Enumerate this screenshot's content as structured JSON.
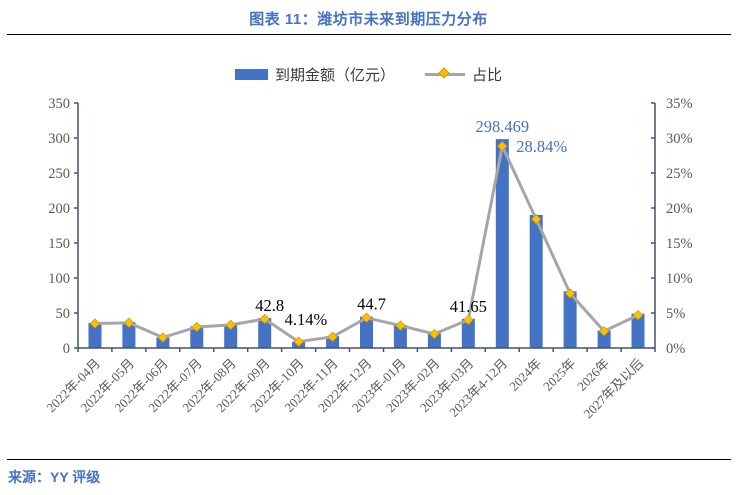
{
  "page": {
    "title": "图表 11：潍坊市未来到期压力分布",
    "source": "来源：YY 评级",
    "accent_color": "#4472C4"
  },
  "legend": {
    "bar": {
      "label": "到期金额（亿元）"
    },
    "line": {
      "label": "占比"
    }
  },
  "chart_data": {
    "type": "bar+line combo",
    "title": "图表 11：潍坊市未来到期压力分布",
    "grid": "off",
    "legend_position": "top-center",
    "categories": [
      "2022年-04月",
      "2022年-05月",
      "2022年-06月",
      "2022年-07月",
      "2022年-08月",
      "2022年-09月",
      "2022年-10月",
      "2022年-11月",
      "2022年-12月",
      "2023年-01月",
      "2023年-02月",
      "2023年-03月",
      "2023年4-12月",
      "2024年",
      "2025年",
      "2026年",
      "2027年及以后"
    ],
    "series": [
      {
        "name": "到期金额（亿元）",
        "type": "bar",
        "axis": "left",
        "color": "#4472C4",
        "values": [
          36,
          37,
          15,
          31,
          34,
          42.8,
          9,
          17,
          44.7,
          33,
          21,
          41.65,
          298.469,
          190,
          81,
          25,
          49
        ]
      },
      {
        "name": "占比",
        "type": "line",
        "axis": "right",
        "color": "#A6A6A6",
        "marker": "diamond",
        "marker_color": "#FFC000",
        "marker_edge_color": "#d09b00",
        "values_percent": [
          3.5,
          3.6,
          1.5,
          3.0,
          3.3,
          4.14,
          0.9,
          1.6,
          4.32,
          3.2,
          2.0,
          4.02,
          28.84,
          18.4,
          7.8,
          2.4,
          4.7
        ]
      }
    ],
    "left_axis": {
      "min": 0,
      "max": 350,
      "step": 50,
      "ticks": [
        "0",
        "50",
        "100",
        "150",
        "200",
        "250",
        "300",
        "350"
      ]
    },
    "right_axis": {
      "min": 0,
      "max": 35,
      "step": 5,
      "suffix": "%",
      "ticks": [
        "0%",
        "5%",
        "10%",
        "15%",
        "20%",
        "25%",
        "30%",
        "35%"
      ]
    },
    "axis_color": "#44546A",
    "tick_label_color": "#595959",
    "annotations": [
      {
        "category_index": 5,
        "series": "bar",
        "text": "42.8",
        "color": "#000000",
        "dx": 5
      },
      {
        "category_index": 5,
        "series": "line",
        "text": "4.14%",
        "color": "#000000",
        "dx": 11
      },
      {
        "category_index": 8,
        "series": "bar",
        "text": "44.7",
        "color": "#000000",
        "dx": 5
      },
      {
        "category_index": 11,
        "series": "bar",
        "text": "41.65",
        "color": "#000000",
        "dx": 0
      },
      {
        "category_index": 12,
        "series": "bar",
        "text": "298.469",
        "color": "#4472C4",
        "dx": 0
      },
      {
        "category_index": 12,
        "series": "line",
        "text": "28.84%",
        "color": "#4472C4",
        "dx": 5
      }
    ]
  }
}
